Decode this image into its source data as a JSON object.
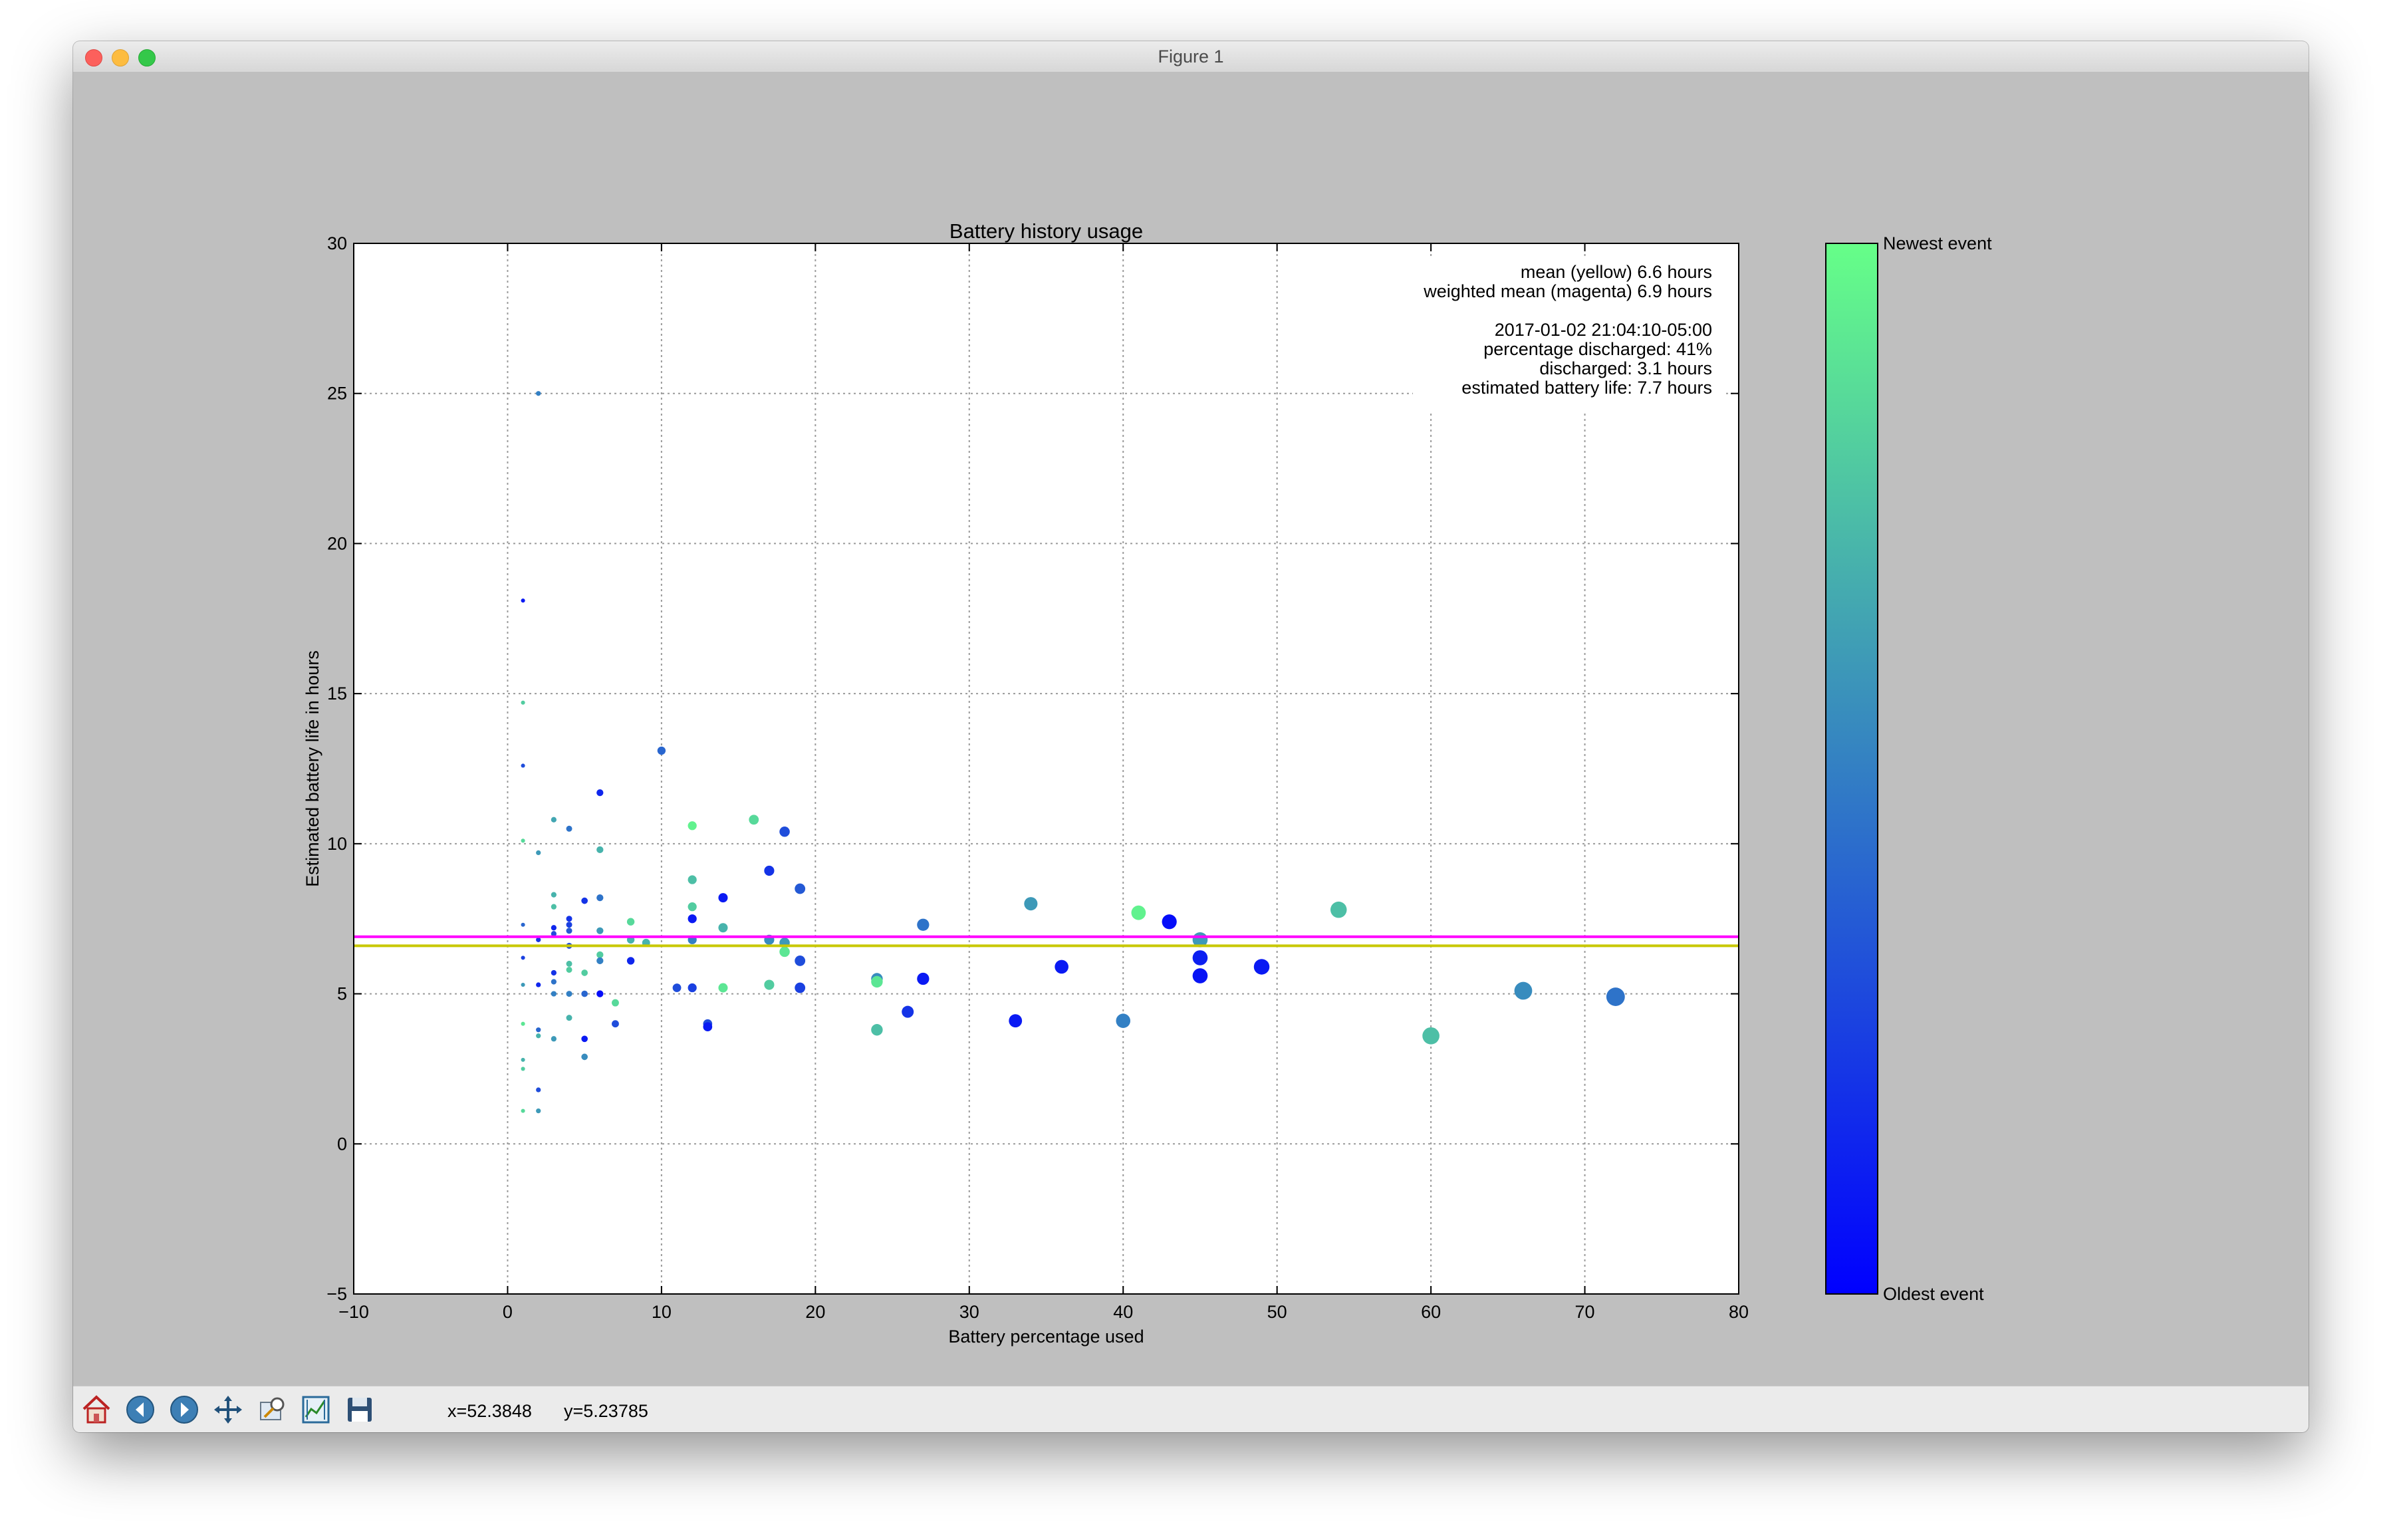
{
  "window": {
    "title": "Figure 1"
  },
  "chart_data": {
    "type": "scatter",
    "title": "Battery history usage",
    "xlabel": "Battery percentage used",
    "ylabel": "Estimated battery life in hours",
    "xlim": [
      -10,
      80
    ],
    "ylim": [
      -5,
      30
    ],
    "xticks": [
      -10,
      0,
      10,
      20,
      30,
      40,
      50,
      60,
      70,
      80
    ],
    "yticks": [
      -5,
      0,
      5,
      10,
      15,
      20,
      25,
      30
    ],
    "xtick_labels": [
      "−10",
      "0",
      "10",
      "20",
      "30",
      "40",
      "50",
      "60",
      "70",
      "80"
    ],
    "ytick_labels": [
      "−5",
      "0",
      "5",
      "10",
      "15",
      "20",
      "25",
      "30"
    ],
    "grid": true,
    "colormap": {
      "low_color": "#0000ff",
      "high_color": "#66ff88",
      "low_label": "Oldest event",
      "high_label": "Newest event"
    },
    "hlines": [
      {
        "y": 6.9,
        "color": "#ff00ff"
      },
      {
        "y": 6.6,
        "color": "#c8c800"
      }
    ],
    "annotation": [
      "mean (yellow) 6.6 hours",
      "weighted mean (magenta) 6.9 hours",
      "",
      "2017-01-02 21:04:10-05:00",
      "percentage discharged: 41%",
      "discharged: 3.1 hours",
      "estimated battery life: 7.7 hours"
    ],
    "note": "each point is [battery % used, estimated life in hours, event recency 0=oldest..1=newest]",
    "points": [
      [
        2,
        25,
        0.5
      ],
      [
        1,
        18.1,
        0.1
      ],
      [
        1,
        14.7,
        0.8
      ],
      [
        1,
        12.6,
        0.3
      ],
      [
        1,
        10.1,
        0.85
      ],
      [
        1,
        7.3,
        0.4
      ],
      [
        1,
        6.2,
        0.25
      ],
      [
        1,
        5.3,
        0.6
      ],
      [
        1,
        4.0,
        0.9
      ],
      [
        1,
        2.8,
        0.7
      ],
      [
        1,
        2.5,
        0.8
      ],
      [
        1,
        1.1,
        0.85
      ],
      [
        2,
        9.7,
        0.6
      ],
      [
        2,
        6.8,
        0.2
      ],
      [
        2,
        5.3,
        0.15
      ],
      [
        2,
        3.8,
        0.4
      ],
      [
        2,
        3.6,
        0.7
      ],
      [
        2,
        1.8,
        0.3
      ],
      [
        2,
        1.1,
        0.6
      ],
      [
        3,
        10.8,
        0.65
      ],
      [
        3,
        8.3,
        0.7
      ],
      [
        3,
        7.9,
        0.75
      ],
      [
        3,
        7.2,
        0.15
      ],
      [
        3,
        7.0,
        0.3
      ],
      [
        3,
        5.7,
        0.2
      ],
      [
        3,
        5.4,
        0.45
      ],
      [
        3,
        5.0,
        0.5
      ],
      [
        3,
        3.5,
        0.6
      ],
      [
        4,
        10.5,
        0.45
      ],
      [
        4,
        7.5,
        0.2
      ],
      [
        4,
        7.3,
        0.25
      ],
      [
        4,
        7.1,
        0.35
      ],
      [
        4,
        6.6,
        0.3
      ],
      [
        4,
        6.0,
        0.75
      ],
      [
        4,
        5.8,
        0.8
      ],
      [
        4,
        5.0,
        0.5
      ],
      [
        4,
        4.2,
        0.7
      ],
      [
        5,
        8.1,
        0.2
      ],
      [
        5,
        5.7,
        0.8
      ],
      [
        5,
        5.0,
        0.4
      ],
      [
        5,
        3.5,
        0.1
      ],
      [
        5,
        2.9,
        0.55
      ],
      [
        6,
        11.7,
        0.15
      ],
      [
        6,
        9.8,
        0.7
      ],
      [
        6,
        8.2,
        0.45
      ],
      [
        6,
        7.1,
        0.6
      ],
      [
        6,
        6.3,
        0.8
      ],
      [
        6,
        6.1,
        0.5
      ],
      [
        6,
        5.0,
        0.05
      ],
      [
        7,
        4.7,
        0.85
      ],
      [
        7,
        4.0,
        0.3
      ],
      [
        8,
        7.4,
        0.85
      ],
      [
        8,
        6.1,
        0.15
      ],
      [
        8,
        6.8,
        0.7
      ],
      [
        9,
        6.7,
        0.7
      ],
      [
        10,
        13.1,
        0.4
      ],
      [
        11,
        5.2,
        0.3
      ],
      [
        12,
        10.6,
        0.95
      ],
      [
        12,
        8.8,
        0.75
      ],
      [
        12,
        7.9,
        0.8
      ],
      [
        12,
        7.5,
        0.1
      ],
      [
        12,
        6.8,
        0.5
      ],
      [
        12,
        5.2,
        0.25
      ],
      [
        13,
        4.0,
        0.3
      ],
      [
        13,
        3.9,
        0.1
      ],
      [
        14,
        8.2,
        0.1
      ],
      [
        14,
        7.2,
        0.7
      ],
      [
        14,
        5.2,
        0.9
      ],
      [
        16,
        10.8,
        0.85
      ],
      [
        17,
        9.1,
        0.2
      ],
      [
        17,
        6.8,
        0.55
      ],
      [
        17,
        5.3,
        0.8
      ],
      [
        18,
        10.4,
        0.3
      ],
      [
        18,
        6.7,
        0.6
      ],
      [
        18,
        6.4,
        0.9
      ],
      [
        19,
        8.5,
        0.35
      ],
      [
        19,
        6.1,
        0.3
      ],
      [
        19,
        5.2,
        0.25
      ],
      [
        24,
        5.5,
        0.55
      ],
      [
        24,
        5.4,
        0.9
      ],
      [
        24,
        3.8,
        0.75
      ],
      [
        26,
        4.4,
        0.2
      ],
      [
        27,
        7.3,
        0.45
      ],
      [
        27,
        5.5,
        0.1
      ],
      [
        33,
        4.1,
        0.1
      ],
      [
        34,
        8.0,
        0.6
      ],
      [
        36,
        5.9,
        0.1
      ],
      [
        40,
        4.1,
        0.5
      ],
      [
        41,
        7.7,
        0.95
      ],
      [
        43,
        7.4,
        0.05
      ],
      [
        45,
        6.8,
        0.6
      ],
      [
        45,
        6.2,
        0.12
      ],
      [
        45,
        5.6,
        0.08
      ],
      [
        49,
        5.9,
        0.1
      ],
      [
        54,
        7.8,
        0.75
      ],
      [
        60,
        3.6,
        0.75
      ],
      [
        66,
        5.1,
        0.55
      ],
      [
        72,
        4.9,
        0.45
      ]
    ]
  },
  "toolbar": {
    "buttons": [
      {
        "name": "home-button",
        "icon": "home-icon"
      },
      {
        "name": "back-button",
        "icon": "arrow-left-icon"
      },
      {
        "name": "forward-button",
        "icon": "arrow-right-icon"
      },
      {
        "name": "pan-button",
        "icon": "move-icon"
      },
      {
        "name": "zoom-button",
        "icon": "zoom-rect-icon"
      },
      {
        "name": "subplots-button",
        "icon": "configure-subplots-icon"
      },
      {
        "name": "save-button",
        "icon": "floppy-disk-icon"
      }
    ],
    "x_readout": "x=52.3848",
    "y_readout": "y=5.23785"
  }
}
